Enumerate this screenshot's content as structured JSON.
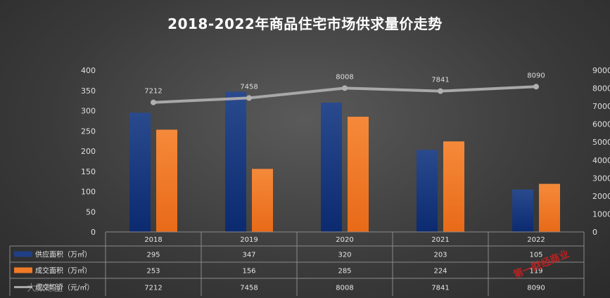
{
  "title": "2018-2022年商品住宅市场供求量价走势",
  "chart_data": {
    "type": "bar",
    "categories": [
      "2018",
      "2019",
      "2020",
      "2021",
      "2022"
    ],
    "series": [
      {
        "name": "供应面积（万㎡）",
        "kind": "bar",
        "axis": "left",
        "color": "#1f3f86",
        "values": [
          295,
          347,
          320,
          203,
          105
        ]
      },
      {
        "name": "成交面积（万㎡）",
        "kind": "bar",
        "axis": "left",
        "color": "#f07a26",
        "values": [
          253,
          156,
          285,
          224,
          119
        ]
      },
      {
        "name": "成交均价（元/㎡）",
        "kind": "line",
        "axis": "right",
        "color": "#a8a8a8",
        "values": [
          7212,
          7458,
          8008,
          7841,
          8090
        ]
      }
    ],
    "y_left": {
      "min": 0,
      "max": 400,
      "ticks": [
        0,
        50,
        100,
        150,
        200,
        250,
        300,
        350,
        400
      ]
    },
    "y_right": {
      "min": 0,
      "max": 9000,
      "ticks": [
        0,
        1000,
        2000,
        3000,
        4000,
        5000,
        6000,
        7000,
        8000,
        9000
      ]
    },
    "data_table": true
  },
  "watermark": "大数瞭望",
  "stamp": "第一财经商业"
}
